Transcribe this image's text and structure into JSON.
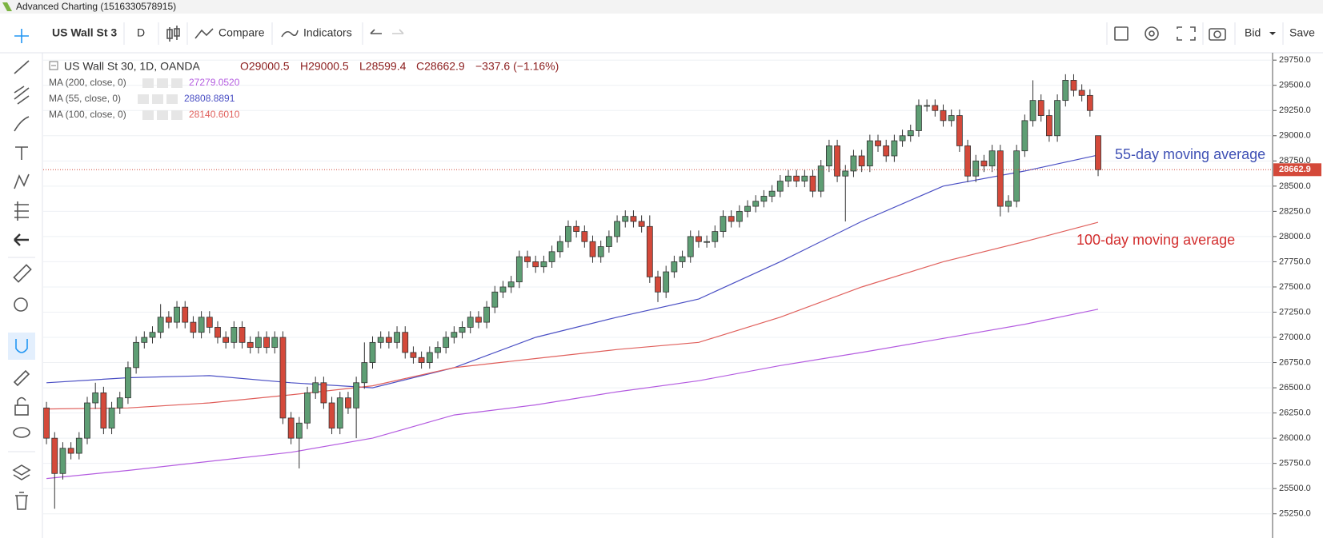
{
  "window_title": "Advanced Charting (1516330578915)",
  "toolbar": {
    "symbol": "US Wall St 3",
    "interval": "D",
    "compare": "Compare",
    "indicators": "Indicators",
    "price_type": "Bid",
    "save": "Save"
  },
  "chart_data": {
    "type": "candlestick",
    "legend": {
      "symbol": "US Wall St 30, 1D, OANDA",
      "ohlc": [
        "O29000.5",
        "H29000.5",
        "L28599.4",
        "C28662.9"
      ],
      "change": "−337.6 (−1.16%)"
    },
    "last_price_label": "28662.9",
    "up_color": "#5e9e74",
    "down_color": "#d4493a",
    "ylim": [
      25010,
      29815
    ],
    "xlim": [
      -0.4,
      150.4
    ],
    "yticks": [
      {
        "value": 25250,
        "label": "25250.0"
      },
      {
        "value": 25500,
        "label": "25500.0"
      },
      {
        "value": 25750,
        "label": "25750.0"
      },
      {
        "value": 26000,
        "label": "26000.0"
      },
      {
        "value": 26250,
        "label": "26250.0"
      },
      {
        "value": 26500,
        "label": "26500.0"
      },
      {
        "value": 26750,
        "label": "26750.0"
      },
      {
        "value": 27000,
        "label": "27000.0"
      },
      {
        "value": 27250,
        "label": "27250.0"
      },
      {
        "value": 27500,
        "label": "27500.0"
      },
      {
        "value": 27750,
        "label": "27750.0"
      },
      {
        "value": 28000,
        "label": "28000.0"
      },
      {
        "value": 28250,
        "label": "28250.0"
      },
      {
        "value": 28500,
        "label": "28500.0"
      },
      {
        "value": 28750,
        "label": "28750.0"
      },
      {
        "value": 29000,
        "label": "29000.0"
      },
      {
        "value": 29250,
        "label": "29250.0"
      },
      {
        "value": 29500,
        "label": "29500.0"
      },
      {
        "value": 29750,
        "label": "29750.0"
      }
    ],
    "grid": true,
    "open": [
      26300,
      26000,
      25650,
      25900,
      25850,
      26000,
      26350,
      26450,
      26100,
      26300,
      26400,
      26700,
      26950,
      27000,
      27050,
      27200,
      27150,
      27300,
      27150,
      27050,
      27200,
      27100,
      27000,
      26950,
      27100,
      26950,
      26900,
      27000,
      26900,
      27000,
      26200,
      26000,
      26150,
      26450,
      26550,
      26350,
      26100,
      26400,
      26300,
      26550,
      26750,
      26950,
      27000,
      26950,
      27050,
      26850,
      26800,
      26750,
      26850,
      26900,
      27000,
      27050,
      27100,
      27200,
      27150,
      27300,
      27450,
      27500,
      27550,
      27800,
      27750,
      27700,
      27750,
      27850,
      27950,
      28100,
      28050,
      27950,
      27800,
      27900,
      28000,
      28150,
      28200,
      28150,
      28100,
      27600,
      27450,
      27650,
      27750,
      27800,
      28000,
      27950,
      27950,
      28050,
      28200,
      28150,
      28250,
      28300,
      28350,
      28400,
      28450,
      28550,
      28600,
      28550,
      28600,
      28450,
      28700,
      28900,
      28600,
      28650,
      28800,
      28700,
      28950,
      28900,
      28800,
      28950,
      29000,
      29050,
      29300,
      29300,
      29250,
      29150,
      29200,
      28900,
      28600,
      28750,
      28700,
      28850,
      28300,
      28350,
      28850,
      29150,
      29350,
      29200,
      29000,
      29350,
      29550,
      29450,
      29400,
      29000.5
    ],
    "high": [
      26360,
      26060,
      25960,
      25960,
      26060,
      26410,
      26550,
      26510,
      26360,
      26460,
      26760,
      27010,
      27060,
      27110,
      27330,
      27260,
      27360,
      27360,
      27210,
      27260,
      27260,
      27160,
      27060,
      27160,
      27160,
      27010,
      27060,
      27060,
      27060,
      27060,
      26260,
      26210,
      26510,
      26610,
      26610,
      26410,
      26460,
      26460,
      26610,
      26950,
      27010,
      27060,
      27060,
      27110,
      27110,
      26910,
      26860,
      26910,
      26960,
      27060,
      27110,
      27160,
      27260,
      27260,
      27360,
      27510,
      27560,
      27610,
      27860,
      27860,
      27810,
      27810,
      27910,
      28010,
      28160,
      28160,
      28110,
      28010,
      27960,
      28060,
      28210,
      28260,
      28260,
      28210,
      28210,
      27660,
      27710,
      27810,
      27860,
      28060,
      28060,
      28010,
      28110,
      28260,
      28260,
      28310,
      28360,
      28410,
      28460,
      28510,
      28610,
      28660,
      28660,
      28660,
      28660,
      28760,
      28960,
      28960,
      28710,
      28860,
      28860,
      29010,
      29010,
      28960,
      29010,
      29060,
      29110,
      29360,
      29360,
      29360,
      29310,
      29260,
      29260,
      28960,
      28810,
      28810,
      28910,
      28910,
      28410,
      28910,
      29210,
      29550,
      29410,
      29260,
      29410,
      29610,
      29610,
      29510,
      29460,
      29000.5
    ],
    "low": [
      25940,
      25300,
      25590,
      25790,
      25790,
      25940,
      26290,
      26040,
      26040,
      26240,
      26340,
      26640,
      26890,
      26940,
      26990,
      27090,
      27090,
      27090,
      26990,
      26990,
      27040,
      26940,
      26890,
      26890,
      26890,
      26840,
      26840,
      26840,
      26840,
      26140,
      25940,
      25700,
      26090,
      26390,
      26290,
      26040,
      26040,
      26240,
      26000,
      26490,
      26690,
      26890,
      26890,
      26890,
      26790,
      26740,
      26690,
      26690,
      26790,
      26840,
      26940,
      26990,
      27040,
      27090,
      27090,
      27240,
      27390,
      27440,
      27490,
      27690,
      27640,
      27640,
      27690,
      27790,
      27890,
      27990,
      27890,
      27740,
      27740,
      27840,
      27940,
      28090,
      28090,
      28040,
      27540,
      27350,
      27390,
      27590,
      27690,
      27740,
      27890,
      27890,
      27890,
      27990,
      28090,
      28090,
      28190,
      28240,
      28290,
      28340,
      28390,
      28490,
      28490,
      28490,
      28390,
      28390,
      28640,
      28540,
      28150,
      28590,
      28640,
      28640,
      28840,
      28740,
      28740,
      28890,
      28940,
      28990,
      29240,
      29190,
      29090,
      29090,
      28840,
      28540,
      28540,
      28640,
      28640,
      28200,
      28240,
      28290,
      28790,
      29090,
      29140,
      28940,
      28940,
      29290,
      29390,
      29340,
      29190,
      28599.4
    ],
    "close": [
      26000,
      25650,
      25900,
      25850,
      26000,
      26350,
      26450,
      26100,
      26300,
      26400,
      26700,
      26950,
      27000,
      27050,
      27200,
      27150,
      27300,
      27150,
      27050,
      27200,
      27100,
      27000,
      26950,
      27100,
      26950,
      26900,
      27000,
      26900,
      27000,
      26200,
      26000,
      26150,
      26450,
      26550,
      26350,
      26100,
      26400,
      26300,
      26550,
      26750,
      26950,
      27000,
      26950,
      27050,
      26850,
      26800,
      26750,
      26850,
      26900,
      27000,
      27050,
      27100,
      27200,
      27150,
      27300,
      27450,
      27500,
      27550,
      27800,
      27750,
      27700,
      27750,
      27850,
      27950,
      28100,
      28050,
      27950,
      27800,
      27900,
      28000,
      28150,
      28200,
      28150,
      28100,
      27600,
      27450,
      27650,
      27750,
      27800,
      28000,
      27950,
      27950,
      28050,
      28200,
      28150,
      28250,
      28300,
      28350,
      28400,
      28450,
      28550,
      28600,
      28550,
      28600,
      28450,
      28700,
      28900,
      28600,
      28650,
      28800,
      28700,
      28950,
      28900,
      28800,
      28950,
      29000,
      29050,
      29300,
      29300,
      29250,
      29150,
      29200,
      28900,
      28600,
      28750,
      28700,
      28850,
      28300,
      28350,
      28850,
      29150,
      29350,
      29200,
      29000,
      29350,
      29550,
      29450,
      29400,
      29250,
      28662.9
    ],
    "series": [
      {
        "name": "MA (200, close, 0)",
        "value_label": "27279.0520",
        "color": "#b45ce0",
        "x": [
          0,
          10,
          20,
          30,
          40,
          50,
          60,
          70,
          80,
          90,
          100,
          110,
          120,
          129
        ],
        "values": [
          25600,
          25680,
          25770,
          25860,
          26000,
          26230,
          26330,
          26460,
          26570,
          26720,
          26850,
          26990,
          27130,
          27279
        ]
      },
      {
        "name": "MA (55, close, 0)",
        "value_label": "28808.8891",
        "color": "#4a4fc4",
        "x": [
          0,
          10,
          20,
          30,
          40,
          50,
          60,
          70,
          80,
          90,
          100,
          110,
          120,
          129
        ],
        "values": [
          26550,
          26600,
          26620,
          26550,
          26500,
          26700,
          27000,
          27200,
          27380,
          27750,
          28150,
          28500,
          28650,
          28809
        ]
      },
      {
        "name": "MA (100, close, 0)",
        "value_label": "28140.6010",
        "color": "#e0605c",
        "x": [
          0,
          10,
          20,
          30,
          40,
          50,
          60,
          70,
          80,
          90,
          100,
          110,
          120,
          129
        ],
        "values": [
          26290,
          26300,
          26350,
          26430,
          26520,
          26700,
          26790,
          26880,
          26950,
          27200,
          27500,
          27750,
          27950,
          28141
        ]
      }
    ],
    "annotations": [
      {
        "text": "55-day moving average",
        "color": "#3f51b5"
      },
      {
        "text": "100-day moving average",
        "color": "#d32f2f"
      }
    ]
  }
}
